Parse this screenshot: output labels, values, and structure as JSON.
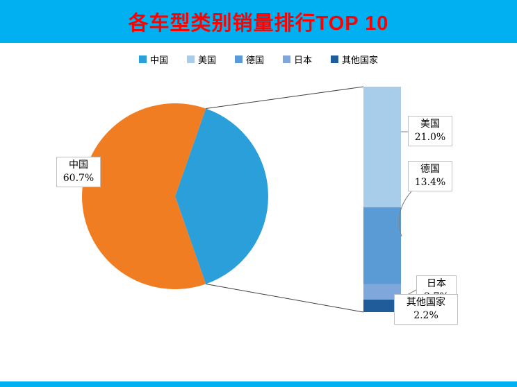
{
  "header": {
    "title": "各车型类别销量排行TOP 10"
  },
  "legend": {
    "items": [
      {
        "label": "中国",
        "color": "#2B9FD9"
      },
      {
        "label": "美国",
        "color": "#A8CDEB"
      },
      {
        "label": "德国",
        "color": "#5B9BD5"
      },
      {
        "label": "日本",
        "color": "#7FA7DC"
      },
      {
        "label": "其他国家",
        "color": "#1F5C99"
      }
    ]
  },
  "chart_data": {
    "type": "pie",
    "subtype": "bar-of-pie",
    "title": "各车型类别销量排行TOP 10",
    "categories": [
      "中国",
      "美国",
      "德国",
      "日本",
      "其他国家"
    ],
    "values": [
      60.7,
      21.0,
      13.4,
      2.7,
      2.2
    ],
    "unit": "%",
    "legend_position": "top",
    "main_slice": {
      "name": "中国",
      "value": 60.7,
      "color": "#F07D22"
    },
    "aggregate_slice": {
      "value": 39.3,
      "color": "#2B9FD9"
    },
    "bar_segments": [
      {
        "name": "美国",
        "value": 21.0,
        "color": "#A8CDEB"
      },
      {
        "name": "德国",
        "value": 13.4,
        "color": "#5B9BD5"
      },
      {
        "name": "日本",
        "value": 2.7,
        "color": "#7FA7DC"
      },
      {
        "name": "其他国家",
        "value": 2.2,
        "color": "#1F5C99"
      }
    ]
  },
  "callouts": {
    "china": {
      "line1": "中国",
      "line2": "60.7%"
    },
    "usa": {
      "line1": "美国",
      "line2": "21.0%"
    },
    "germany": {
      "line1": "德国",
      "line2": "13.4%"
    },
    "japan": {
      "line1": "日本",
      "line2": "2.7%"
    },
    "others": {
      "line1": "其他国家",
      "line2": "2.2%"
    }
  },
  "colors": {
    "header_bg": "#00B0F0",
    "title_text": "#FF0000",
    "footer_bg": "#00B0F0"
  }
}
